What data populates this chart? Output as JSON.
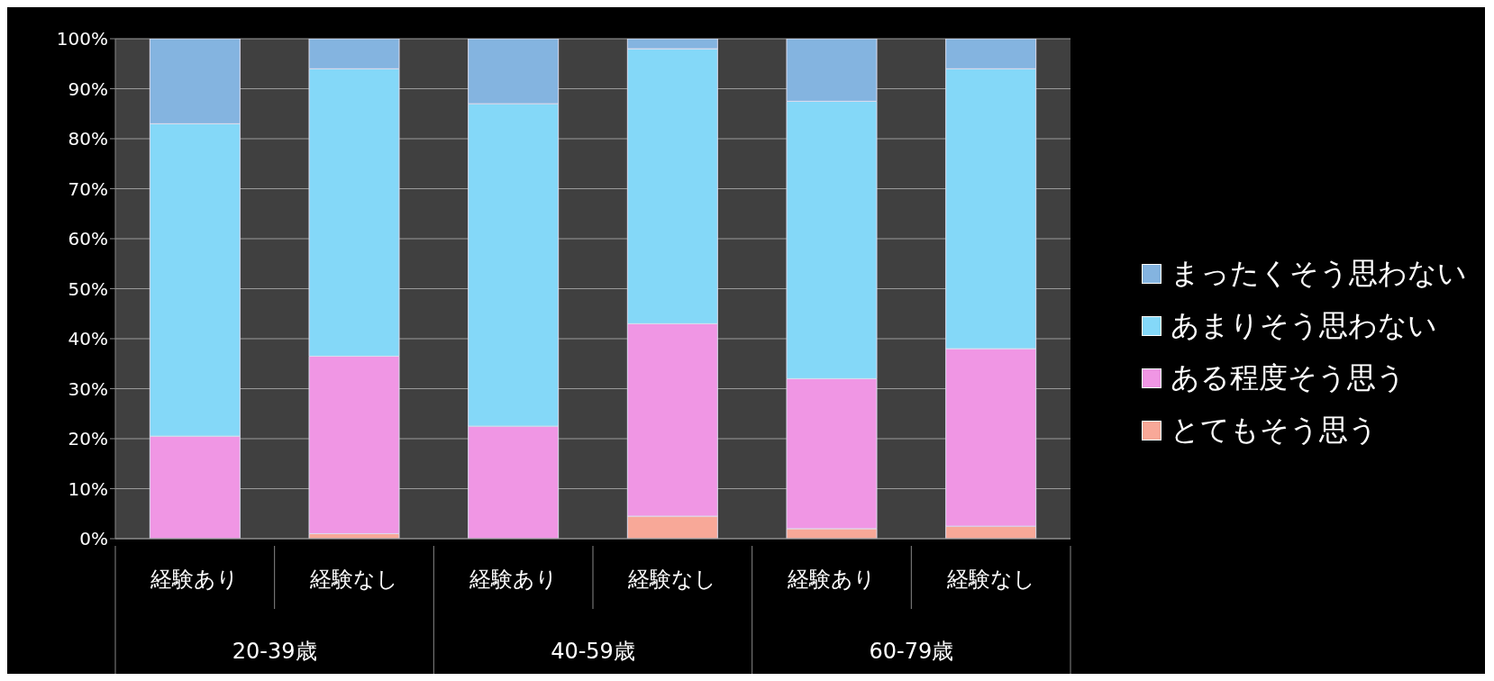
{
  "chart_data": {
    "type": "bar",
    "stacked": true,
    "categories": [
      "経験あり",
      "経験なし",
      "経験あり",
      "経験なし",
      "経験あり",
      "経験なし"
    ],
    "annotations": [
      "20-39歳",
      "40-59歳",
      "60-79歳"
    ],
    "series": [
      {
        "name": "とてもそう思う",
        "color": "#f8a898",
        "values": [
          0,
          1,
          0,
          4.5,
          2,
          2.5
        ]
      },
      {
        "name": "ある程度そう思う",
        "color": "#f096e4",
        "values": [
          20.5,
          35.5,
          22.5,
          38.5,
          30,
          35.5
        ]
      },
      {
        "name": "あまりそう思わない",
        "color": "#84d8f8",
        "values": [
          62.5,
          57.5,
          64.5,
          55,
          55.5,
          56
        ]
      },
      {
        "name": "まったくそう思わない",
        "color": "#84b4e0",
        "values": [
          17,
          6,
          13,
          2,
          12.5,
          6
        ]
      }
    ],
    "ylim": [
      0,
      100
    ],
    "yticks": [
      {
        "value": 0,
        "label": "0%"
      },
      {
        "value": 10,
        "label": "10%"
      },
      {
        "value": 20,
        "label": "20%"
      },
      {
        "value": 30,
        "label": "30%"
      },
      {
        "value": 40,
        "label": "40%"
      },
      {
        "value": 50,
        "label": "50%"
      },
      {
        "value": 60,
        "label": "60%"
      },
      {
        "value": 70,
        "label": "70%"
      },
      {
        "value": 80,
        "label": "80%"
      },
      {
        "value": 90,
        "label": "90%"
      },
      {
        "value": 100,
        "label": "100%"
      }
    ],
    "grid": "y",
    "legend": "right"
  }
}
